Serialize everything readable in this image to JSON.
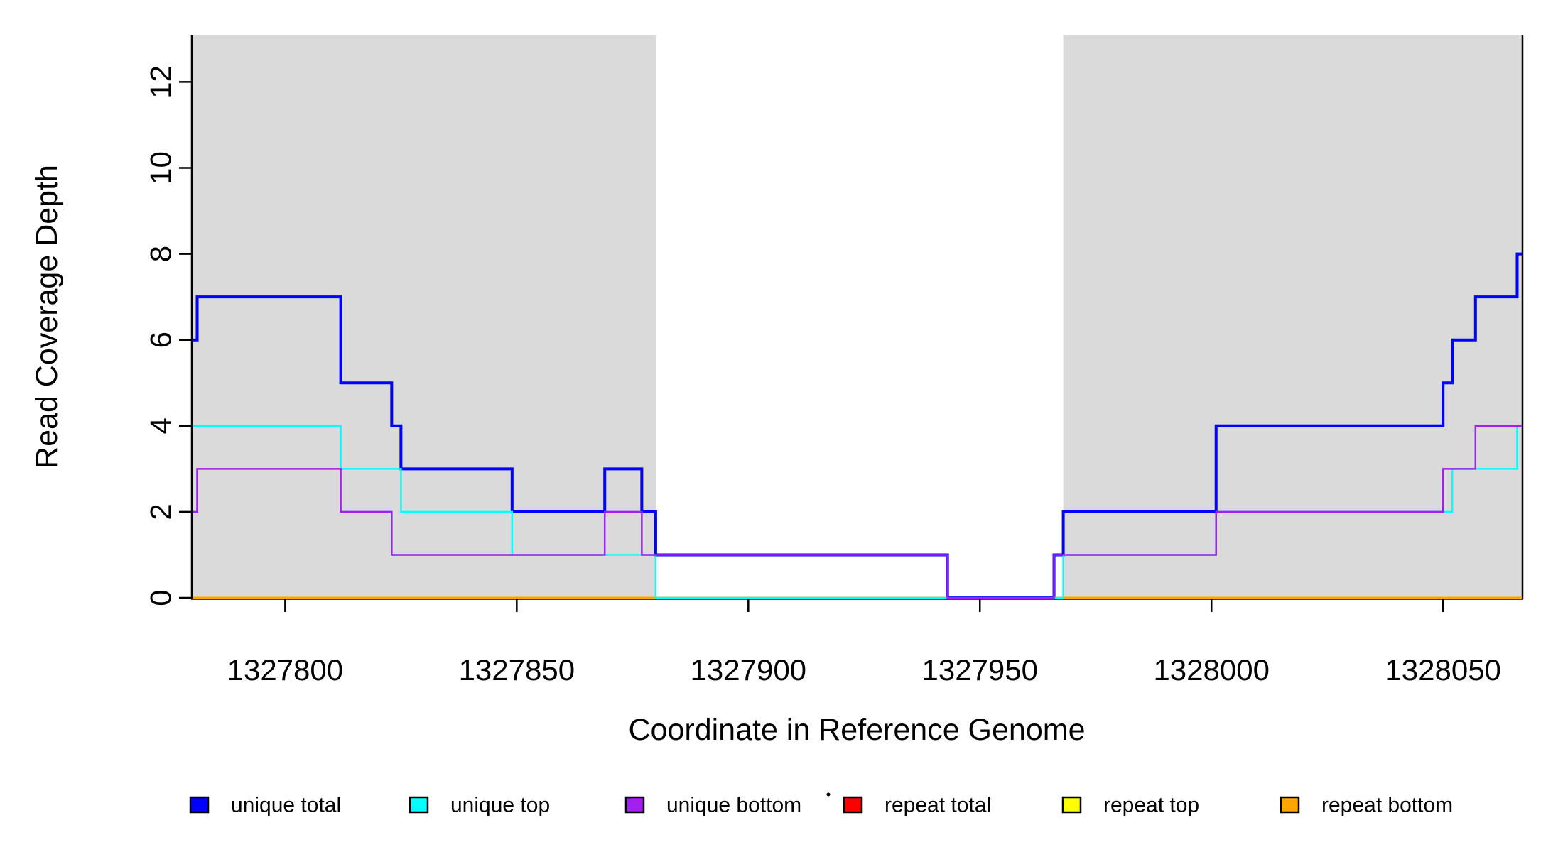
{
  "chart_data": {
    "type": "line",
    "subtype": "step-after",
    "title": "",
    "xlabel": "Coordinate in Reference Genome",
    "ylabel": "Read Coverage Depth",
    "xlim": [
      1327780,
      1328067
    ],
    "ylim": [
      0,
      13.08
    ],
    "x_ticks": [
      1327800,
      1327850,
      1327900,
      1327950,
      1328000,
      1328050
    ],
    "y_ticks": [
      0,
      2,
      4,
      6,
      8,
      10,
      12
    ],
    "grid": false,
    "legend_position": "bottom",
    "shaded_region_color": "#DADADA",
    "shaded_regions": [
      {
        "name": "left-shaded-region",
        "x0": 1327780,
        "x1": 1327880
      },
      {
        "name": "right-shaded-region",
        "x0": 1327968,
        "x1": 1328067
      }
    ],
    "series": [
      {
        "name": "unique total",
        "color": "#0000FF",
        "line_width": 4,
        "steps": [
          [
            1327780,
            6
          ],
          [
            1327781,
            7
          ],
          [
            1327812,
            5
          ],
          [
            1327823,
            4
          ],
          [
            1327825,
            3
          ],
          [
            1327849,
            2
          ],
          [
            1327869,
            3
          ],
          [
            1327877,
            2
          ],
          [
            1327880,
            1
          ],
          [
            1327943,
            0
          ],
          [
            1327966,
            1
          ],
          [
            1327968,
            2
          ],
          [
            1328001,
            4
          ],
          [
            1328050,
            5
          ],
          [
            1328052,
            6
          ],
          [
            1328057,
            7
          ],
          [
            1328066,
            8
          ]
        ]
      },
      {
        "name": "unique top",
        "color": "#00FFFF",
        "line_width": 2.5,
        "steps": [
          [
            1327780,
            4
          ],
          [
            1327812,
            3
          ],
          [
            1327825,
            2
          ],
          [
            1327849,
            1
          ],
          [
            1327880,
            0
          ],
          [
            1327968,
            1
          ],
          [
            1328001,
            2
          ],
          [
            1328052,
            3
          ],
          [
            1328066,
            4
          ]
        ]
      },
      {
        "name": "unique bottom",
        "color": "#A020F0",
        "line_width": 2.5,
        "steps": [
          [
            1327780,
            2
          ],
          [
            1327781,
            3
          ],
          [
            1327812,
            2
          ],
          [
            1327823,
            1
          ],
          [
            1327869,
            2
          ],
          [
            1327877,
            1
          ],
          [
            1327943,
            0
          ],
          [
            1327966,
            1
          ],
          [
            1328001,
            2
          ],
          [
            1328050,
            3
          ],
          [
            1328057,
            4
          ]
        ]
      },
      {
        "name": "repeat total",
        "color": "#FF0000",
        "line_width": 2.5,
        "steps": [
          [
            1327780,
            0
          ]
        ]
      },
      {
        "name": "repeat top",
        "color": "#FFFF00",
        "line_width": 2.5,
        "steps": [
          [
            1327780,
            0
          ]
        ]
      },
      {
        "name": "repeat bottom",
        "color": "#FFA500",
        "line_width": 3,
        "steps": [
          [
            1327780,
            0
          ]
        ]
      }
    ],
    "legend": [
      {
        "label": "unique total",
        "color": "#0000FF"
      },
      {
        "label": "unique top",
        "color": "#00FFFF"
      },
      {
        "label": "unique bottom",
        "color": "#A020F0"
      },
      {
        "label": "repeat total",
        "color": "#FF0000"
      },
      {
        "label": "repeat top",
        "color": "#FFFF00"
      },
      {
        "label": "repeat bottom",
        "color": "#FFA500"
      }
    ]
  }
}
